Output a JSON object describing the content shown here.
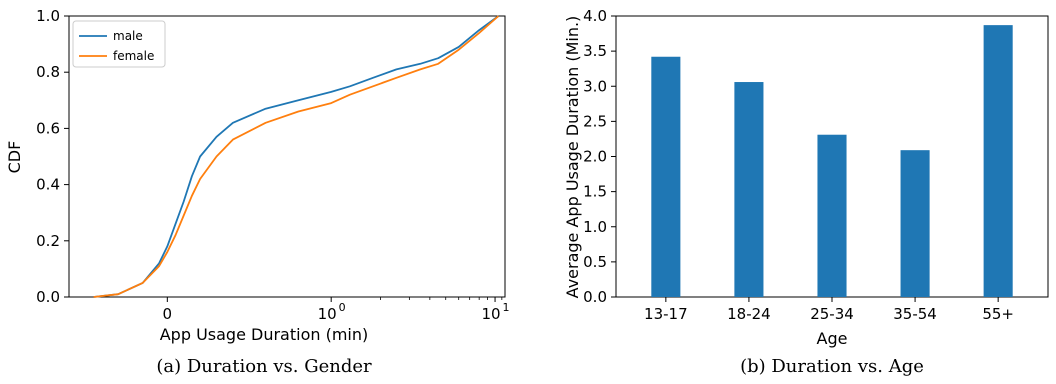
{
  "chart_data": [
    {
      "type": "line",
      "caption": "(a) Duration vs. Gender",
      "xlabel": "App Usage Duration (min)",
      "ylabel": "CDF",
      "xscale": "symlog",
      "x_ticks": [
        "0",
        "10^0",
        "10^1"
      ],
      "y_ticks": [
        "0.0",
        "0.2",
        "0.4",
        "0.6",
        "0.8",
        "1.0"
      ],
      "ylim": [
        0,
        1
      ],
      "legend_position": "top-left",
      "series": [
        {
          "name": "male",
          "color": "#1f77b4",
          "points": [
            [
              -0.45,
              0.0
            ],
            [
              -0.3,
              0.01
            ],
            [
              -0.15,
              0.05
            ],
            [
              -0.05,
              0.12
            ],
            [
              0,
              0.18
            ],
            [
              0.05,
              0.26
            ],
            [
              0.1,
              0.34
            ],
            [
              0.15,
              0.43
            ],
            [
              0.2,
              0.5
            ],
            [
              0.3,
              0.57
            ],
            [
              0.4,
              0.62
            ],
            [
              0.6,
              0.67
            ],
            [
              0.8,
              0.7
            ],
            [
              1.0,
              0.73
            ],
            [
              1.3,
              0.75
            ],
            [
              1.8,
              0.78
            ],
            [
              2.5,
              0.81
            ],
            [
              3.5,
              0.83
            ],
            [
              4.5,
              0.85
            ],
            [
              6.0,
              0.89
            ],
            [
              8.0,
              0.95
            ],
            [
              10.5,
              1.0
            ]
          ]
        },
        {
          "name": "female",
          "color": "#ff7f0e",
          "points": [
            [
              -0.45,
              0.0
            ],
            [
              -0.3,
              0.01
            ],
            [
              -0.15,
              0.05
            ],
            [
              -0.05,
              0.11
            ],
            [
              0,
              0.16
            ],
            [
              0.05,
              0.22
            ],
            [
              0.1,
              0.29
            ],
            [
              0.15,
              0.36
            ],
            [
              0.2,
              0.42
            ],
            [
              0.3,
              0.5
            ],
            [
              0.4,
              0.56
            ],
            [
              0.6,
              0.62
            ],
            [
              0.8,
              0.66
            ],
            [
              1.0,
              0.69
            ],
            [
              1.3,
              0.72
            ],
            [
              1.8,
              0.75
            ],
            [
              2.5,
              0.78
            ],
            [
              3.5,
              0.81
            ],
            [
              4.5,
              0.83
            ],
            [
              6.0,
              0.88
            ],
            [
              8.0,
              0.94
            ],
            [
              10.5,
              1.0
            ]
          ]
        }
      ]
    },
    {
      "type": "bar",
      "caption": "(b) Duration vs. Age",
      "xlabel": "Age",
      "ylabel": "Average App Usage Duration (Min.)",
      "categories": [
        "13-17",
        "18-24",
        "25-34",
        "35-54",
        "55+"
      ],
      "values": [
        3.42,
        3.06,
        2.31,
        2.09,
        3.87
      ],
      "color": "#1f77b4",
      "ylim": [
        0,
        4.0
      ],
      "y_ticks": [
        "0.0",
        "0.5",
        "1.0",
        "1.5",
        "2.0",
        "2.5",
        "3.0",
        "3.5",
        "4.0"
      ]
    }
  ]
}
